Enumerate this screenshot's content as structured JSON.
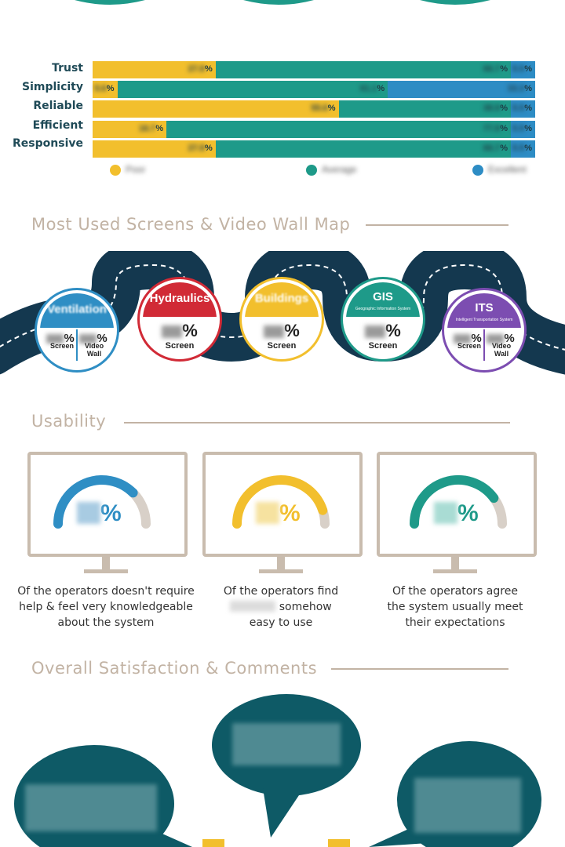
{
  "ratings": {
    "rows": [
      {
        "label": "Trust",
        "segments": [
          {
            "pct": 27.8,
            "label": "27.8"
          },
          {
            "pct": 66.7,
            "label": "66.7"
          },
          {
            "pct": 5.5,
            "label": "5.5"
          }
        ]
      },
      {
        "label": "Simplicity",
        "segments": [
          {
            "pct": 5.6,
            "label": "5.6"
          },
          {
            "pct": 61.1,
            "label": "61.1"
          },
          {
            "pct": 33.3,
            "label": "33.3"
          }
        ]
      },
      {
        "label": "Reliable",
        "segments": [
          {
            "pct": 55.6,
            "label": "55.6"
          },
          {
            "pct": 38.9,
            "label": "38.9"
          },
          {
            "pct": 5.5,
            "label": "5.5"
          }
        ]
      },
      {
        "label": "Efficient",
        "segments": [
          {
            "pct": 16.7,
            "label": "16.7"
          },
          {
            "pct": 77.8,
            "label": "77.8"
          },
          {
            "pct": 5.5,
            "label": "5.5"
          }
        ]
      },
      {
        "label": "Responsive",
        "segments": [
          {
            "pct": 27.8,
            "label": "27.8"
          },
          {
            "pct": 66.7,
            "label": "66.7"
          },
          {
            "pct": 5.5,
            "label": "5.5"
          }
        ]
      }
    ],
    "pct_sign": "%",
    "legend": [
      {
        "label": "Poor",
        "color": "#f2bf2d"
      },
      {
        "label": "Average",
        "color": "#1e9a89"
      },
      {
        "label": "Excellent",
        "color": "#2d8cc4"
      }
    ]
  },
  "screens": {
    "title": "Most Used Screens & Video Wall Map",
    "pct_sign": "%",
    "screen_label": "Screen",
    "video_wall_label": [
      "Video",
      "Wall"
    ],
    "items": [
      {
        "name": "Ventilation",
        "subtitle": "",
        "color": "#2f8ec4"
      },
      {
        "name": "Hydraulics",
        "subtitle": "",
        "color": "#d12a36"
      },
      {
        "name": "Buildings",
        "subtitle": "",
        "color": "#f2bf2d"
      },
      {
        "name": "GIS",
        "subtitle": "Geographic Information System",
        "color": "#1e9a89"
      },
      {
        "name": "ITS",
        "subtitle": "Intelligent Transportation System",
        "color": "#7c4db1"
      }
    ]
  },
  "usability": {
    "title": "Usability",
    "pct_sign": "%",
    "gauges": [
      {
        "color": "#2f8ec4",
        "value": 0.75,
        "caption": [
          "Of the operators doesn't require",
          "help & feel very knowledgeable",
          "about the system"
        ]
      },
      {
        "color": "#f2bf2d",
        "value": 0.9,
        "caption": [
          "Of the operators find",
          "somehow",
          "easy to use"
        ]
      },
      {
        "color": "#1e9a89",
        "value": 0.8,
        "caption": [
          "Of the operators agree",
          "the system usually meet",
          "their expectations"
        ]
      }
    ]
  },
  "satisfaction": {
    "title": "Overall Satisfaction & Comments",
    "bubble_color": "#0e5a66"
  }
}
